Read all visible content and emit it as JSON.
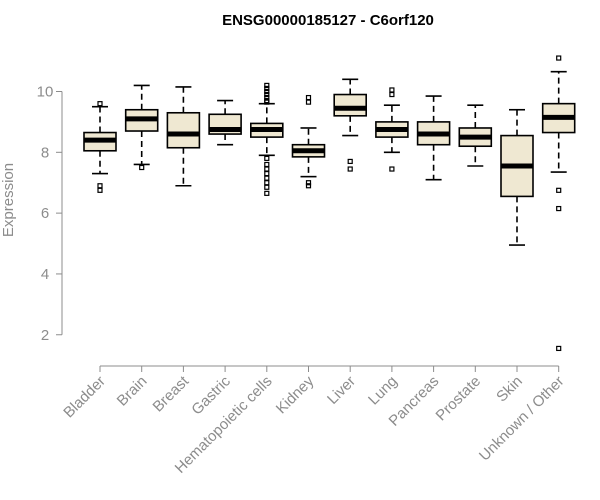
{
  "chart_data": {
    "type": "boxplot",
    "title": "ENSG00000185127 - C6orf120",
    "xlabel": "",
    "ylabel": "Expression",
    "ylim": [
      1.4,
      11.2
    ],
    "yticks": [
      2,
      4,
      6,
      8,
      10
    ],
    "grid": false,
    "legend": "none",
    "box_color": "#efe8d2",
    "categories": [
      "Bladder",
      "Brain",
      "Breast",
      "Gastric",
      "Hematopoietic cells",
      "Kidney",
      "Liver",
      "Lung",
      "Pancreas",
      "Prostate",
      "Skin",
      "Unknown / Other"
    ],
    "boxes": [
      {
        "low": 7.3,
        "q1": 8.05,
        "median": 8.4,
        "q3": 8.65,
        "high": 9.5,
        "outliers": [
          9.6,
          6.9,
          6.75
        ]
      },
      {
        "low": 7.6,
        "q1": 8.7,
        "median": 9.1,
        "q3": 9.4,
        "high": 10.2,
        "outliers": [
          7.5
        ]
      },
      {
        "low": 6.9,
        "q1": 8.15,
        "median": 8.6,
        "q3": 9.3,
        "high": 10.15,
        "outliers": []
      },
      {
        "low": 8.25,
        "q1": 8.6,
        "median": 8.75,
        "q3": 9.25,
        "high": 9.7,
        "outliers": []
      },
      {
        "low": 7.9,
        "q1": 8.5,
        "median": 8.75,
        "q3": 8.95,
        "high": 9.6,
        "outliers": [
          10.2,
          10.1,
          10.0,
          9.9,
          9.8,
          9.7,
          9.65,
          7.8,
          7.6,
          7.45,
          7.3,
          7.15,
          7.0,
          6.85,
          6.65
        ]
      },
      {
        "low": 7.2,
        "q1": 7.85,
        "median": 8.05,
        "q3": 8.25,
        "high": 8.8,
        "outliers": [
          9.8,
          9.65,
          7.0,
          6.9
        ]
      },
      {
        "low": 8.55,
        "q1": 9.2,
        "median": 9.45,
        "q3": 9.9,
        "high": 10.4,
        "outliers": [
          7.7,
          7.45
        ]
      },
      {
        "low": 8.0,
        "q1": 8.5,
        "median": 8.75,
        "q3": 9.0,
        "high": 9.55,
        "outliers": [
          10.05,
          9.9,
          7.45
        ]
      },
      {
        "low": 7.1,
        "q1": 8.25,
        "median": 8.6,
        "q3": 9.0,
        "high": 9.85,
        "outliers": []
      },
      {
        "low": 7.55,
        "q1": 8.2,
        "median": 8.5,
        "q3": 8.8,
        "high": 9.55,
        "outliers": []
      },
      {
        "low": 4.95,
        "q1": 6.55,
        "median": 7.55,
        "q3": 8.55,
        "high": 9.4,
        "outliers": []
      },
      {
        "low": 7.35,
        "q1": 8.65,
        "median": 9.15,
        "q3": 9.6,
        "high": 10.65,
        "outliers": [
          11.1,
          6.75,
          6.15,
          1.55
        ]
      }
    ]
  }
}
